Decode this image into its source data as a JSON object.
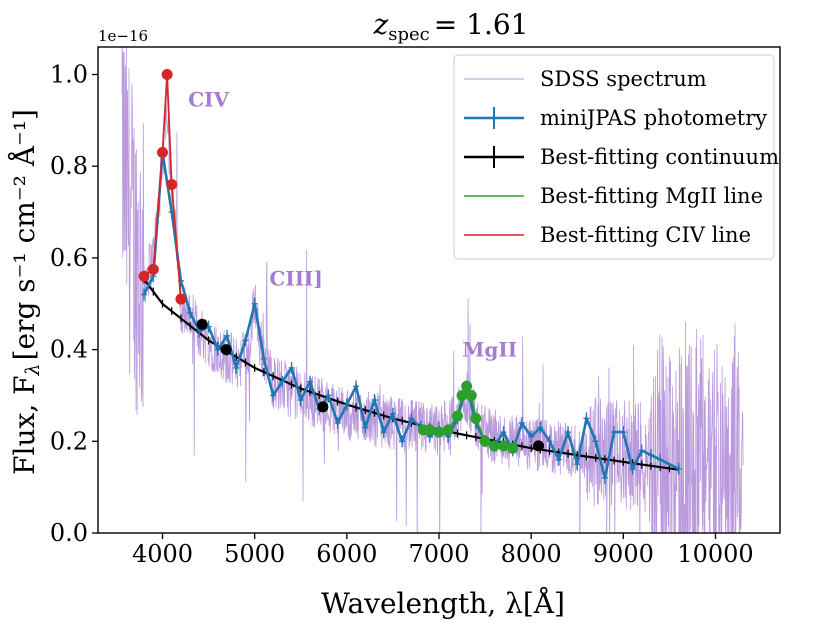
{
  "chart_data": {
    "type": "line",
    "title": "z_spec = 1.61",
    "title_main": "z",
    "title_sub": "spec",
    "title_value": "= 1.61",
    "xlabel": "Wavelength, λ[Å]",
    "ylabel": "Flux, F_λ [erg s⁻¹ cm⁻² Å⁻¹]",
    "ylabel_prefix": "Flux, F",
    "ylabel_sub": "λ",
    "ylabel_unit": "[erg s⁻¹ cm⁻² Å⁻¹]",
    "y_scale_label": "1e−16",
    "xlim": [
      3300,
      10700
    ],
    "ylim": [
      0.0,
      1.06
    ],
    "x_ticks": [
      4000,
      5000,
      6000,
      7000,
      8000,
      9000,
      10000
    ],
    "x_tick_labels": [
      "4000",
      "5000",
      "6000",
      "7000",
      "8000",
      "9000",
      "10000"
    ],
    "y_ticks": [
      0.0,
      0.2,
      0.4,
      0.6,
      0.8,
      1.0
    ],
    "y_tick_labels": [
      "0.0",
      "0.2",
      "0.4",
      "0.6",
      "0.8",
      "1.0"
    ],
    "legend_position": "top-right",
    "annotations": [
      {
        "text": "CIV",
        "x": 4500,
        "y": 0.93,
        "color": "#a77bd0"
      },
      {
        "text": "CIII]",
        "x": 5450,
        "y": 0.54,
        "color": "#a77bd0"
      },
      {
        "text": "MgII",
        "x": 7550,
        "y": 0.385,
        "color": "#a77bd0"
      }
    ],
    "series": [
      {
        "name": "SDSS spectrum",
        "color": "#b38fd9",
        "style": "thin-line",
        "anchor_x": [
          3560,
          3600,
          3700,
          3800,
          3900,
          4000,
          4050,
          4100,
          4200,
          4400,
          4600,
          4800,
          4950,
          5000,
          5050,
          5200,
          5500,
          6000,
          6500,
          7000,
          7200,
          7300,
          7400,
          7600,
          8000,
          8500,
          9000,
          9500,
          10000,
          10300
        ],
        "anchor_y": [
          0.85,
          0.75,
          0.62,
          0.55,
          0.6,
          0.8,
          0.95,
          0.75,
          0.5,
          0.44,
          0.4,
          0.37,
          0.4,
          0.52,
          0.42,
          0.33,
          0.3,
          0.26,
          0.24,
          0.22,
          0.25,
          0.3,
          0.24,
          0.21,
          0.19,
          0.18,
          0.17,
          0.16,
          0.17,
          0.15
        ]
      },
      {
        "name": "miniJPAS photometry",
        "color": "#1f77b4",
        "style": "line-errorbars",
        "x": [
          3800,
          3900,
          4000,
          4100,
          4200,
          4300,
          4400,
          4500,
          4600,
          4700,
          4800,
          4900,
          5000,
          5100,
          5200,
          5300,
          5400,
          5500,
          5600,
          5700,
          5800,
          5900,
          6000,
          6100,
          6200,
          6300,
          6400,
          6500,
          6600,
          6700,
          6800,
          6900,
          7000,
          7100,
          7200,
          7300,
          7400,
          7500,
          7600,
          7700,
          7800,
          7900,
          8000,
          8100,
          8200,
          8300,
          8400,
          8500,
          8600,
          8700,
          8800,
          8900,
          9000,
          9100,
          9200,
          9300,
          9400,
          9600
        ],
        "y": [
          0.52,
          0.56,
          0.83,
          0.7,
          0.55,
          0.48,
          0.44,
          0.45,
          0.4,
          0.43,
          0.36,
          0.42,
          0.5,
          0.38,
          0.3,
          0.33,
          0.36,
          0.29,
          0.33,
          0.27,
          0.3,
          0.24,
          0.28,
          0.32,
          0.23,
          0.29,
          0.22,
          0.26,
          0.2,
          0.25,
          0.23,
          0.21,
          0.23,
          0.21,
          0.25,
          0.32,
          0.24,
          0.2,
          0.19,
          0.22,
          0.18,
          0.24,
          0.21,
          0.23,
          0.2,
          0.16,
          0.22,
          0.15,
          0.25,
          0.2,
          0.12,
          0.22,
          0.22,
          0.14,
          0.18,
          0.17,
          0.16,
          0.14
        ]
      },
      {
        "name": "Best-fitting continuum",
        "color": "#000000",
        "style": "line-errorbars",
        "fit_x": [
          3800,
          4000,
          4500,
          5000,
          5500,
          6000,
          6500,
          7000,
          7500,
          8000,
          8500,
          9000,
          9600
        ],
        "fit_y": [
          0.553,
          0.5,
          0.42,
          0.36,
          0.315,
          0.28,
          0.25,
          0.225,
          0.205,
          0.185,
          0.17,
          0.155,
          0.138
        ],
        "points_x": [
          4430,
          4690,
          5740,
          8080
        ],
        "points_y": [
          0.455,
          0.4,
          0.275,
          0.19
        ]
      },
      {
        "name": "Best-fitting MgII line",
        "color": "#2ca02c",
        "style": "line-points",
        "x": [
          6830,
          6900,
          7000,
          7100,
          7200,
          7250,
          7300,
          7350,
          7400,
          7500,
          7600,
          7700,
          7800
        ],
        "y": [
          0.225,
          0.225,
          0.22,
          0.225,
          0.255,
          0.3,
          0.32,
          0.3,
          0.25,
          0.2,
          0.19,
          0.19,
          0.185
        ]
      },
      {
        "name": "Best-fitting CIV line",
        "color": "#d62728",
        "style": "line-points",
        "x": [
          3800,
          3900,
          4000,
          4050,
          4100,
          4200
        ],
        "y": [
          0.56,
          0.575,
          0.83,
          1.0,
          0.76,
          0.51
        ]
      }
    ]
  }
}
